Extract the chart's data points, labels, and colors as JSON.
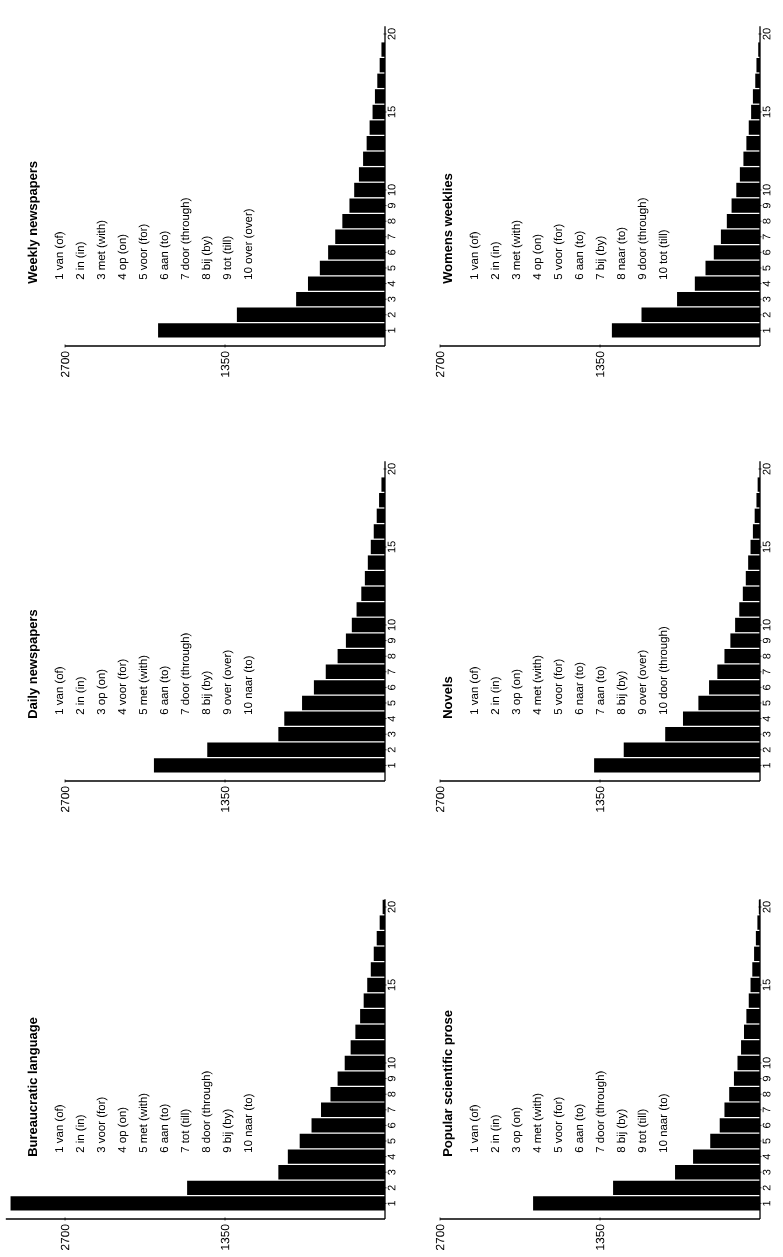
{
  "chart_data": [
    {
      "type": "bar",
      "orientation": "horizontal",
      "title": "Bureaucratic language",
      "color": "#000000",
      "categories": [
        "20",
        null,
        null,
        null,
        null,
        "15",
        null,
        null,
        null,
        null,
        "10",
        "9",
        "8",
        "7",
        "6",
        "5",
        "4",
        "3",
        "2",
        "1"
      ],
      "values": [
        20,
        45,
        70,
        95,
        120,
        150,
        180,
        210,
        250,
        290,
        340,
        400,
        460,
        540,
        620,
        720,
        820,
        900,
        1670,
        3160
      ],
      "xlim": [
        3200,
        0
      ],
      "xticks": [
        2700,
        1350
      ],
      "annotations": [
        "1 van (of)",
        "2 in (in)",
        "3 voor (for)",
        "4 op (on)",
        "5 met (with)",
        "6 aan (to)",
        "7 tot (till)",
        "8 door (through)",
        "9 bij (by)",
        "10 naar (to)"
      ]
    },
    {
      "type": "bar",
      "orientation": "horizontal",
      "title": "Daily newspapers",
      "color": "#000000",
      "categories": [
        "20",
        null,
        null,
        null,
        null,
        "15",
        null,
        null,
        null,
        null,
        "10",
        "9",
        "8",
        "7",
        "6",
        "5",
        "4",
        "3",
        "2",
        "1"
      ],
      "values": [
        null,
        30,
        50,
        70,
        95,
        120,
        145,
        170,
        200,
        240,
        280,
        330,
        400,
        500,
        600,
        700,
        850,
        900,
        1500,
        1950
      ],
      "xlim": [
        2700,
        0
      ],
      "xticks": [
        2700,
        1350
      ],
      "annotations": [
        "1 van (of)",
        "2 in (in)",
        "3 op (on)",
        "4 voor (for)",
        "5 met (with)",
        "6 aan (to)",
        "7 door (through)",
        "8 bij (by)",
        "9 over (over)",
        "10 naar (to)"
      ]
    },
    {
      "type": "bar",
      "orientation": "horizontal",
      "title": "Weekly newspapers",
      "color": "#000000",
      "categories": [
        "20",
        null,
        null,
        null,
        null,
        "15",
        null,
        null,
        null,
        null,
        "10",
        "9",
        "8",
        "7",
        "6",
        "5",
        "4",
        "3",
        "2",
        "1"
      ],
      "values": [
        null,
        30,
        45,
        65,
        85,
        105,
        130,
        155,
        185,
        220,
        260,
        300,
        360,
        420,
        480,
        550,
        650,
        750,
        1250,
        1915
      ],
      "xlim": [
        2700,
        0
      ],
      "xticks": [
        2700,
        1350
      ],
      "annotations": [
        "1 van (of)",
        "2 in (in)",
        "3 met (with)",
        "4 op (on)",
        "5 voor (for)",
        "6 aan (to)",
        "7 door (through)",
        "8 bij (by)",
        "9 tot (till)",
        "10 over (over)"
      ]
    },
    {
      "type": "bar",
      "orientation": "horizontal",
      "title": "Popular scientific prose",
      "color": "#000000",
      "categories": [
        "20",
        null,
        null,
        null,
        null,
        "15",
        null,
        null,
        null,
        null,
        "10",
        "9",
        "8",
        "7",
        "6",
        "5",
        "4",
        "3",
        "2",
        "1"
      ],
      "values": [
        10,
        22,
        35,
        50,
        65,
        80,
        95,
        115,
        135,
        160,
        190,
        220,
        260,
        300,
        340,
        420,
        565,
        717,
        1240,
        1915
      ],
      "xlim": [
        2700,
        0
      ],
      "xticks": [
        2700,
        1350
      ],
      "annotations": [
        "1 van (of)",
        "2 in (in)",
        "3 op (on)",
        "4 met (with)",
        "5 voor (for)",
        "6 aan (to)",
        "7 door (through)",
        "8 bij (by)",
        "9 tot (till)",
        "10 naar (to)"
      ]
    },
    {
      "type": "bar",
      "orientation": "horizontal",
      "title": "Novels",
      "color": "#000000",
      "categories": [
        "20",
        null,
        null,
        null,
        null,
        "15",
        null,
        null,
        null,
        null,
        "10",
        "9",
        "8",
        "7",
        "6",
        "5",
        "4",
        "3",
        "2",
        "1"
      ],
      "values": [
        null,
        20,
        30,
        45,
        60,
        80,
        100,
        120,
        145,
        175,
        210,
        250,
        300,
        360,
        430,
        520,
        650,
        800,
        1150,
        1400
      ],
      "xlim": [
        2700,
        0
      ],
      "xticks": [
        2700,
        1350
      ],
      "annotations": [
        "1 van (of)",
        "2 in (in)",
        "3 op (on)",
        "4 met (with)",
        "5 voor (for)",
        "6 naar (to)",
        "7 aan (to)",
        "8 bij (by)",
        "9 over (over)",
        "10 door (through)"
      ]
    },
    {
      "type": "bar",
      "orientation": "horizontal",
      "title": "Womens weeklies",
      "color": "#000000",
      "categories": [
        "20",
        null,
        null,
        null,
        null,
        "15",
        null,
        null,
        null,
        null,
        "10",
        "9",
        "8",
        "7",
        "6",
        "5",
        "4",
        "3",
        "2",
        "1"
      ],
      "values": [
        null,
        15,
        30,
        40,
        60,
        75,
        95,
        115,
        140,
        170,
        200,
        240,
        280,
        330,
        390,
        460,
        550,
        700,
        1000,
        1250
      ],
      "xlim": [
        2700,
        0
      ],
      "xticks": [
        2700,
        1350
      ],
      "annotations": [
        "1 van (of)",
        "2 in (in)",
        "3 met (with)",
        "4 op (on)",
        "5 voor (for)",
        "6 aan (to)",
        "7 bij (by)",
        "8 naar (to)",
        "9 door (through)",
        "10 tot (till)"
      ]
    }
  ]
}
